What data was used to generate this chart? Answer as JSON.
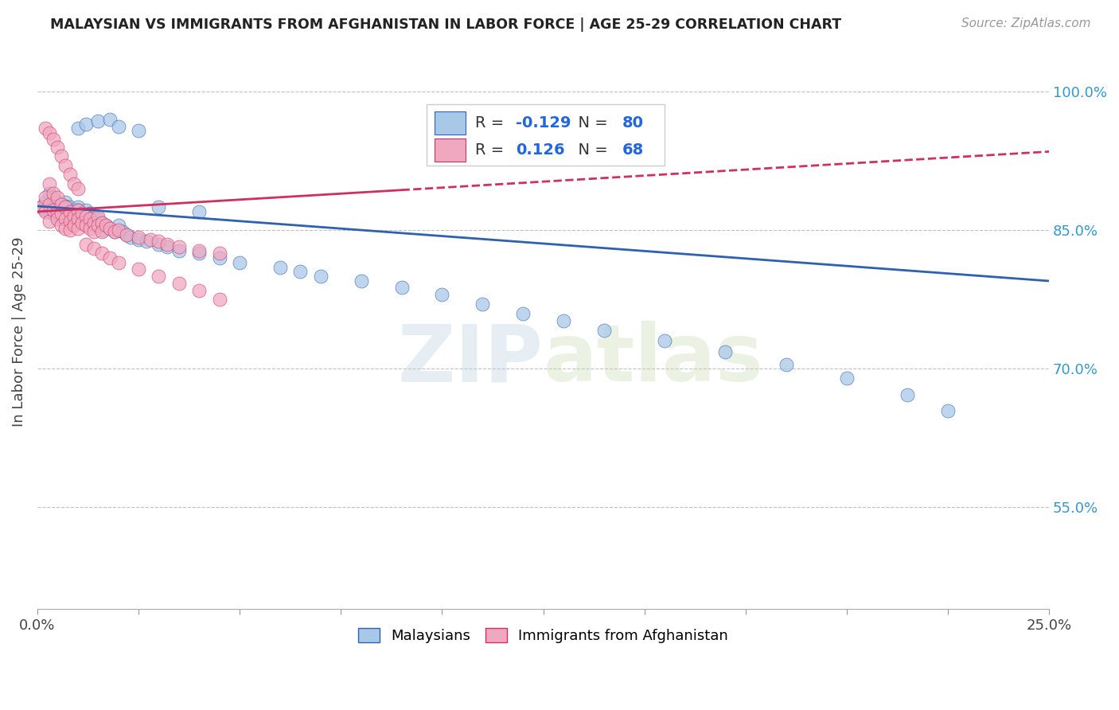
{
  "title": "MALAYSIAN VS IMMIGRANTS FROM AFGHANISTAN IN LABOR FORCE | AGE 25-29 CORRELATION CHART",
  "source": "Source: ZipAtlas.com",
  "ylabel": "In Labor Force | Age 25-29",
  "xlim": [
    0.0,
    0.25
  ],
  "ylim": [
    0.44,
    1.04
  ],
  "yticks": [
    0.55,
    0.7,
    0.85,
    1.0
  ],
  "ytick_labels": [
    "55.0%",
    "70.0%",
    "85.0%",
    "100.0%"
  ],
  "xticks": [
    0.0,
    0.025,
    0.05,
    0.075,
    0.1,
    0.125,
    0.15,
    0.175,
    0.2,
    0.225,
    0.25
  ],
  "xtick_labels_show": [
    "0.0%",
    "",
    "",
    "",
    "",
    "",
    "",
    "",
    "",
    "",
    "25.0%"
  ],
  "blue_R": -0.129,
  "blue_N": 80,
  "pink_R": 0.126,
  "pink_N": 68,
  "blue_color": "#a8c8e8",
  "pink_color": "#f0a8c0",
  "blue_line_color": "#3060b0",
  "pink_line_color": "#d03060",
  "legend_label_blue": "Malaysians",
  "legend_label_pink": "Immigrants from Afghanistan",
  "blue_scatter_x": [
    0.001,
    0.002,
    0.002,
    0.003,
    0.003,
    0.003,
    0.004,
    0.004,
    0.004,
    0.005,
    0.005,
    0.005,
    0.005,
    0.006,
    0.006,
    0.006,
    0.007,
    0.007,
    0.007,
    0.007,
    0.008,
    0.008,
    0.008,
    0.009,
    0.009,
    0.009,
    0.01,
    0.01,
    0.01,
    0.011,
    0.011,
    0.012,
    0.012,
    0.013,
    0.013,
    0.014,
    0.014,
    0.015,
    0.015,
    0.016,
    0.016,
    0.017,
    0.018,
    0.019,
    0.02,
    0.021,
    0.022,
    0.023,
    0.025,
    0.027,
    0.03,
    0.032,
    0.035,
    0.04,
    0.045,
    0.05,
    0.06,
    0.065,
    0.07,
    0.08,
    0.09,
    0.1,
    0.11,
    0.12,
    0.13,
    0.14,
    0.155,
    0.17,
    0.185,
    0.2,
    0.215,
    0.225,
    0.01,
    0.012,
    0.015,
    0.018,
    0.02,
    0.025,
    0.03,
    0.04
  ],
  "blue_scatter_y": [
    0.875,
    0.88,
    0.872,
    0.878,
    0.87,
    0.89,
    0.875,
    0.868,
    0.885,
    0.872,
    0.88,
    0.865,
    0.875,
    0.87,
    0.878,
    0.865,
    0.88,
    0.872,
    0.865,
    0.876,
    0.87,
    0.875,
    0.862,
    0.872,
    0.868,
    0.86,
    0.875,
    0.865,
    0.872,
    0.868,
    0.86,
    0.872,
    0.862,
    0.868,
    0.858,
    0.865,
    0.855,
    0.862,
    0.855,
    0.858,
    0.85,
    0.855,
    0.852,
    0.848,
    0.855,
    0.848,
    0.845,
    0.842,
    0.84,
    0.838,
    0.835,
    0.832,
    0.828,
    0.825,
    0.82,
    0.815,
    0.81,
    0.805,
    0.8,
    0.795,
    0.788,
    0.78,
    0.77,
    0.76,
    0.752,
    0.742,
    0.73,
    0.718,
    0.705,
    0.69,
    0.672,
    0.655,
    0.96,
    0.965,
    0.968,
    0.97,
    0.962,
    0.958,
    0.875,
    0.87
  ],
  "pink_scatter_x": [
    0.001,
    0.002,
    0.002,
    0.003,
    0.003,
    0.003,
    0.004,
    0.004,
    0.005,
    0.005,
    0.005,
    0.006,
    0.006,
    0.006,
    0.007,
    0.007,
    0.007,
    0.008,
    0.008,
    0.008,
    0.009,
    0.009,
    0.01,
    0.01,
    0.01,
    0.011,
    0.011,
    0.012,
    0.012,
    0.013,
    0.013,
    0.014,
    0.014,
    0.015,
    0.015,
    0.016,
    0.016,
    0.017,
    0.018,
    0.019,
    0.02,
    0.022,
    0.025,
    0.028,
    0.03,
    0.032,
    0.035,
    0.04,
    0.045,
    0.002,
    0.003,
    0.004,
    0.005,
    0.006,
    0.007,
    0.008,
    0.009,
    0.01,
    0.012,
    0.014,
    0.016,
    0.018,
    0.02,
    0.025,
    0.03,
    0.035,
    0.04,
    0.045
  ],
  "pink_scatter_y": [
    0.875,
    0.885,
    0.87,
    0.9,
    0.878,
    0.86,
    0.89,
    0.872,
    0.885,
    0.87,
    0.862,
    0.878,
    0.868,
    0.855,
    0.875,
    0.862,
    0.852,
    0.87,
    0.86,
    0.85,
    0.865,
    0.855,
    0.872,
    0.862,
    0.852,
    0.868,
    0.858,
    0.865,
    0.855,
    0.862,
    0.852,
    0.858,
    0.848,
    0.865,
    0.855,
    0.858,
    0.848,
    0.855,
    0.852,
    0.848,
    0.85,
    0.845,
    0.842,
    0.84,
    0.838,
    0.835,
    0.832,
    0.828,
    0.825,
    0.96,
    0.955,
    0.948,
    0.94,
    0.93,
    0.92,
    0.91,
    0.9,
    0.895,
    0.835,
    0.83,
    0.825,
    0.82,
    0.815,
    0.808,
    0.8,
    0.792,
    0.785,
    0.775
  ]
}
